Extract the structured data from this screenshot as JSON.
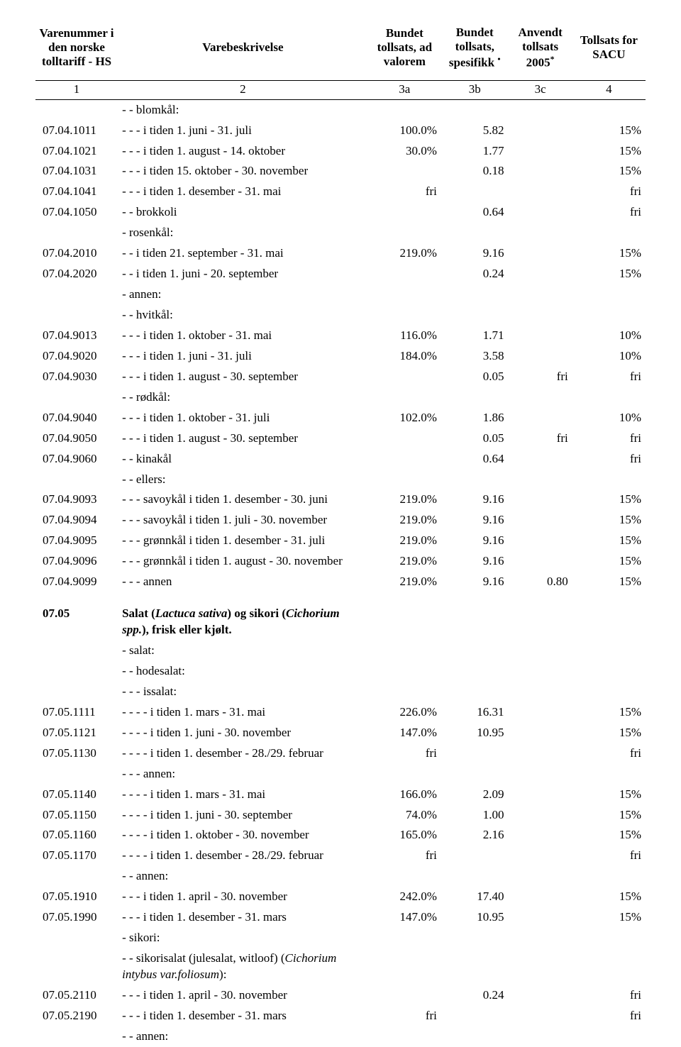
{
  "columns": {
    "code": "Varenummer i den norske tolltariff - HS",
    "desc": "Varebeskrivelse",
    "c3a": "Bundet tollsats, ad valorem",
    "c3b_line1": "Bundet tollsats, spesifikk ",
    "c3b_mark": "•",
    "c3c_line1": "Anvendt tollsats 2005",
    "c3c_mark": "*",
    "c4": "Tollsats for SACU",
    "sub1": "1",
    "sub2": "2",
    "sub3a": "3a",
    "sub3b": "3b",
    "sub3c": "3c",
    "sub4": "4"
  },
  "rows": [
    {
      "type": "row",
      "code": "",
      "desc": "- - blomkål:",
      "c3a": "",
      "c3b": "",
      "c3c": "",
      "c4": ""
    },
    {
      "type": "row",
      "code": "07.04.1011",
      "desc": "- - - i tiden 1. juni - 31. juli",
      "c3a": "100.0%",
      "c3b": "5.82",
      "c3c": "",
      "c4": "15%"
    },
    {
      "type": "row",
      "code": "07.04.1021",
      "desc": "- - - i tiden 1. august - 14. oktober",
      "c3a": "30.0%",
      "c3b": "1.77",
      "c3c": "",
      "c4": "15%"
    },
    {
      "type": "row",
      "code": "07.04.1031",
      "desc": "- - - i tiden 15. oktober - 30. november",
      "c3a": "",
      "c3b": "0.18",
      "c3c": "",
      "c4": "15%"
    },
    {
      "type": "row",
      "code": "07.04.1041",
      "desc": "- - - i tiden 1. desember - 31. mai",
      "c3a": "fri",
      "c3b": "",
      "c3c": "",
      "c4": "fri"
    },
    {
      "type": "row",
      "code": "07.04.1050",
      "desc": "- - brokkoli",
      "c3a": "",
      "c3b": "0.64",
      "c3c": "",
      "c4": "fri"
    },
    {
      "type": "row",
      "code": "",
      "desc": "- rosenkål:",
      "c3a": "",
      "c3b": "",
      "c3c": "",
      "c4": ""
    },
    {
      "type": "row",
      "code": "07.04.2010",
      "desc": "- - i tiden 21. september - 31. mai",
      "c3a": "219.0%",
      "c3b": "9.16",
      "c3c": "",
      "c4": "15%"
    },
    {
      "type": "row",
      "code": "07.04.2020",
      "desc": "- - i tiden 1. juni - 20. september",
      "c3a": "",
      "c3b": "0.24",
      "c3c": "",
      "c4": "15%"
    },
    {
      "type": "row",
      "code": "",
      "desc": "- annen:",
      "c3a": "",
      "c3b": "",
      "c3c": "",
      "c4": ""
    },
    {
      "type": "row",
      "code": "",
      "desc": "- - hvitkål:",
      "c3a": "",
      "c3b": "",
      "c3c": "",
      "c4": ""
    },
    {
      "type": "row",
      "code": "07.04.9013",
      "desc": "- - - i tiden 1. oktober - 31. mai",
      "c3a": "116.0%",
      "c3b": "1.71",
      "c3c": "",
      "c4": "10%"
    },
    {
      "type": "row",
      "code": "07.04.9020",
      "desc": "- - - i tiden 1. juni - 31. juli",
      "c3a": "184.0%",
      "c3b": "3.58",
      "c3c": "",
      "c4": "10%"
    },
    {
      "type": "row",
      "code": "07.04.9030",
      "desc": "- - - i tiden 1. august - 30. september",
      "c3a": "",
      "c3b": "0.05",
      "c3c": "fri",
      "c4": "fri"
    },
    {
      "type": "row",
      "code": "",
      "desc": "- - rødkål:",
      "c3a": "",
      "c3b": "",
      "c3c": "",
      "c4": ""
    },
    {
      "type": "row",
      "code": "07.04.9040",
      "desc": "- - - i tiden 1. oktober - 31. juli",
      "c3a": "102.0%",
      "c3b": "1.86",
      "c3c": "",
      "c4": "10%"
    },
    {
      "type": "row",
      "code": "07.04.9050",
      "desc": "- - - i tiden 1. august - 30. september",
      "c3a": "",
      "c3b": "0.05",
      "c3c": "fri",
      "c4": "fri"
    },
    {
      "type": "row",
      "code": "07.04.9060",
      "desc": "- - kinakål",
      "c3a": "",
      "c3b": "0.64",
      "c3c": "",
      "c4": "fri"
    },
    {
      "type": "row",
      "code": "",
      "desc": "- - ellers:",
      "c3a": "",
      "c3b": "",
      "c3c": "",
      "c4": ""
    },
    {
      "type": "row",
      "code": "07.04.9093",
      "desc": "- - - savoykål i tiden 1. desember - 30. juni",
      "c3a": "219.0%",
      "c3b": "9.16",
      "c3c": "",
      "c4": "15%"
    },
    {
      "type": "row",
      "code": "07.04.9094",
      "desc": "- - - savoykål i tiden 1. juli - 30. november",
      "c3a": "219.0%",
      "c3b": "9.16",
      "c3c": "",
      "c4": "15%"
    },
    {
      "type": "row",
      "code": "07.04.9095",
      "desc": "- - - grønnkål i tiden 1. desember - 31. juli",
      "c3a": "219.0%",
      "c3b": "9.16",
      "c3c": "",
      "c4": "15%"
    },
    {
      "type": "row",
      "code": "07.04.9096",
      "desc": "- - - grønnkål i tiden 1. august - 30. november",
      "c3a": "219.0%",
      "c3b": "9.16",
      "c3c": "",
      "c4": "15%"
    },
    {
      "type": "row",
      "code": "07.04.9099",
      "desc": "- - - annen",
      "c3a": "219.0%",
      "c3b": "9.16",
      "c3c": "0.80",
      "c4": "15%"
    },
    {
      "type": "spacer"
    },
    {
      "type": "heading",
      "code": "07.05",
      "desc_parts": [
        {
          "t": "Salat (",
          "i": false
        },
        {
          "t": "Lactuca sativa",
          "i": true
        },
        {
          "t": ") og sikori (",
          "i": false
        },
        {
          "t": "Cichorium spp.",
          "i": true
        },
        {
          "t": "), frisk eller kjølt.",
          "i": false
        }
      ]
    },
    {
      "type": "row",
      "code": "",
      "desc": "- salat:",
      "c3a": "",
      "c3b": "",
      "c3c": "",
      "c4": ""
    },
    {
      "type": "row",
      "code": "",
      "desc": "- - hodesalat:",
      "c3a": "",
      "c3b": "",
      "c3c": "",
      "c4": ""
    },
    {
      "type": "row",
      "code": "",
      "desc": "- - - issalat:",
      "c3a": "",
      "c3b": "",
      "c3c": "",
      "c4": ""
    },
    {
      "type": "row",
      "code": "07.05.1111",
      "desc": "- - - - i tiden 1. mars - 31. mai",
      "c3a": "226.0%",
      "c3b": "16.31",
      "c3c": "",
      "c4": "15%"
    },
    {
      "type": "row",
      "code": "07.05.1121",
      "desc": "- - - - i tiden 1. juni - 30. november",
      "c3a": "147.0%",
      "c3b": "10.95",
      "c3c": "",
      "c4": "15%"
    },
    {
      "type": "row",
      "code": "07.05.1130",
      "desc": "- - - - i tiden 1. desember - 28./29. februar",
      "c3a": "fri",
      "c3b": "",
      "c3c": "",
      "c4": "fri"
    },
    {
      "type": "row",
      "code": "",
      "desc": "- - - annen:",
      "c3a": "",
      "c3b": "",
      "c3c": "",
      "c4": ""
    },
    {
      "type": "row",
      "code": "07.05.1140",
      "desc": "- - - - i tiden 1. mars - 31. mai",
      "c3a": "166.0%",
      "c3b": "2.09",
      "c3c": "",
      "c4": "15%"
    },
    {
      "type": "row",
      "code": "07.05.1150",
      "desc": "- - - - i tiden 1. juni - 30. september",
      "c3a": "74.0%",
      "c3b": "1.00",
      "c3c": "",
      "c4": "15%"
    },
    {
      "type": "row",
      "code": "07.05.1160",
      "desc": "- - - - i tiden 1. oktober - 30. november",
      "c3a": "165.0%",
      "c3b": "2.16",
      "c3c": "",
      "c4": "15%"
    },
    {
      "type": "row",
      "code": "07.05.1170",
      "desc": "- - - - i tiden 1. desember - 28./29. februar",
      "c3a": "fri",
      "c3b": "",
      "c3c": "",
      "c4": "fri"
    },
    {
      "type": "row",
      "code": "",
      "desc": "- - annen:",
      "c3a": "",
      "c3b": "",
      "c3c": "",
      "c4": ""
    },
    {
      "type": "row",
      "code": "07.05.1910",
      "desc": "- - - i tiden 1. april - 30. november",
      "c3a": "242.0%",
      "c3b": "17.40",
      "c3c": "",
      "c4": "15%"
    },
    {
      "type": "row",
      "code": "07.05.1990",
      "desc": "- - - i tiden 1. desember - 31. mars",
      "c3a": "147.0%",
      "c3b": "10.95",
      "c3c": "",
      "c4": "15%"
    },
    {
      "type": "row",
      "code": "",
      "desc": "- sikori:",
      "c3a": "",
      "c3b": "",
      "c3c": "",
      "c4": ""
    },
    {
      "type": "row_parts",
      "code": "",
      "desc_parts": [
        {
          "t": "- - sikorisalat (julesalat, witloof) (",
          "i": false
        },
        {
          "t": "Cichorium intybus var.foliosum",
          "i": true
        },
        {
          "t": "):",
          "i": false
        }
      ],
      "c3a": "",
      "c3b": "",
      "c3c": "",
      "c4": ""
    },
    {
      "type": "row",
      "code": "07.05.2110",
      "desc": "- - - i tiden 1. april - 30. november",
      "c3a": "",
      "c3b": "0.24",
      "c3c": "",
      "c4": "fri"
    },
    {
      "type": "row",
      "code": "07.05.2190",
      "desc": "- - - i tiden 1. desember - 31. mars",
      "c3a": "fri",
      "c3b": "",
      "c3c": "",
      "c4": "fri"
    },
    {
      "type": "row",
      "code": "",
      "desc": "- - annen:",
      "c3a": "",
      "c3b": "",
      "c3c": "",
      "c4": ""
    }
  ]
}
